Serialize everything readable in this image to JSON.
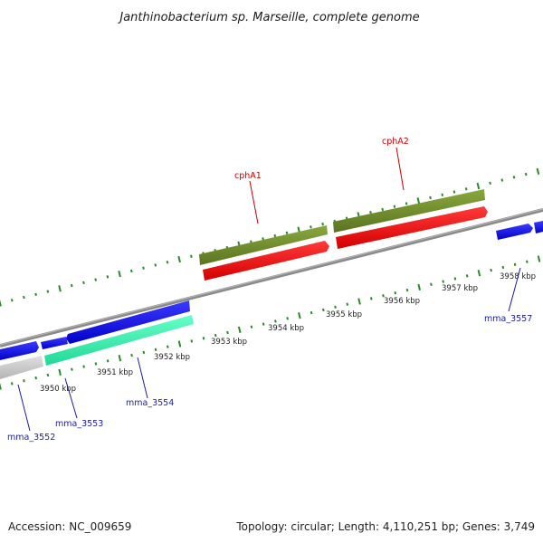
{
  "title": "Janthinobacterium sp. Marseille, complete genome",
  "footer": {
    "accession": "Accession: NC_009659",
    "summary": "Topology: circular; Length: 4,110,251 bp; Genes: 3,749"
  },
  "colors": {
    "backbone": "#8c8c8c",
    "tick": "#2a8a2a",
    "label_blue": "#1a1aa8",
    "label_red": "#cc0000",
    "forward_cds": "#1414e0",
    "highlight_cds": "#e81010",
    "highlight_gene": "#6e8a2a",
    "cyan_gene": "#33e6a8",
    "grey_gene": "#c8c8c8"
  },
  "ruler": {
    "labels": [
      "3950 kbp",
      "3951 kbp",
      "3952 kbp",
      "3953 kbp",
      "3954 kbp",
      "3955 kbp",
      "3956 kbp",
      "3957 kbp",
      "3958 kbp"
    ]
  },
  "genes": [
    {
      "name": "mma_3552",
      "color": "label_blue"
    },
    {
      "name": "mma_3553",
      "color": "label_blue"
    },
    {
      "name": "mma_3554",
      "color": "label_blue"
    },
    {
      "name": "mma_3557",
      "color": "label_blue"
    },
    {
      "name": "cphA1",
      "color": "label_red"
    },
    {
      "name": "cphA2",
      "color": "label_red"
    }
  ]
}
